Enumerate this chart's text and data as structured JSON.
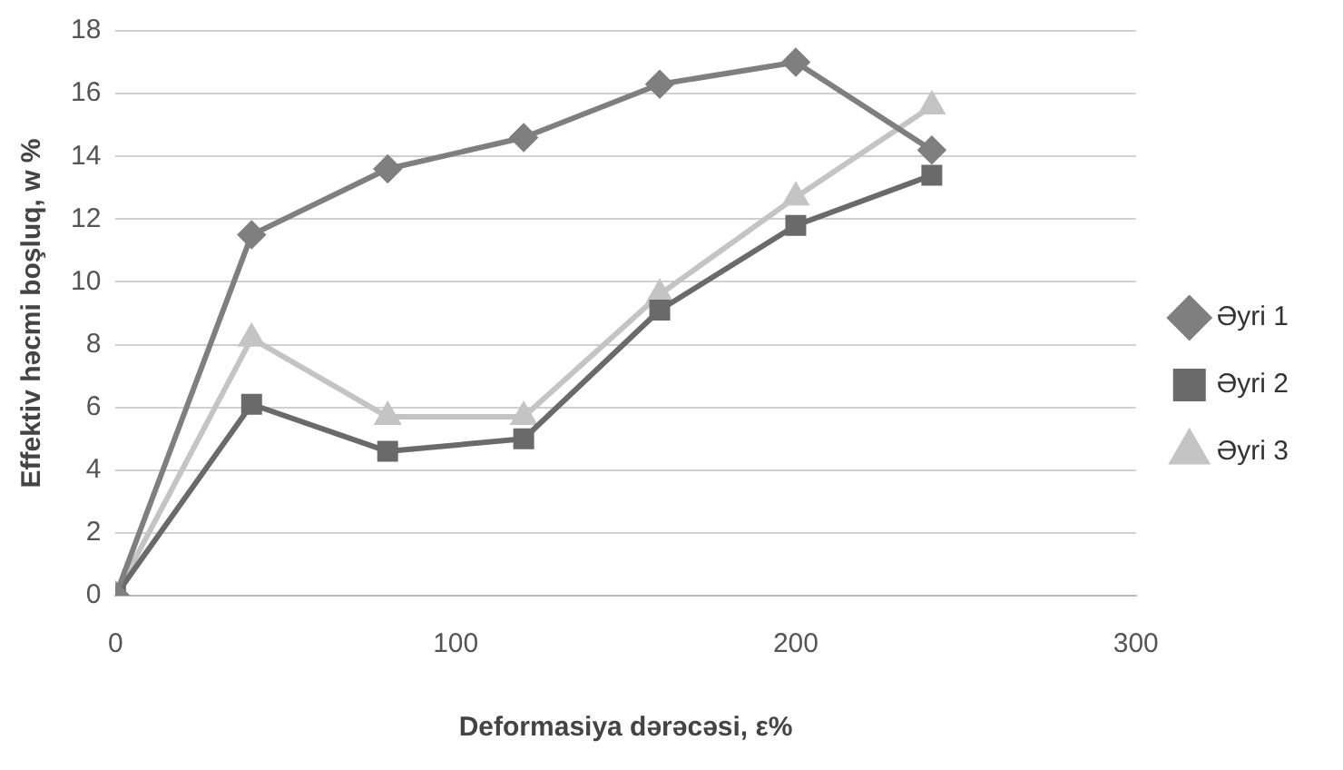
{
  "chart_data": {
    "type": "line",
    "xlabel": "Deformasiya dərəcəsi, ε%",
    "ylabel": "Effektiv həcmi boşluq, w %",
    "x": [
      0,
      40,
      80,
      120,
      160,
      200,
      240
    ],
    "series": [
      {
        "name": "Əyri 1",
        "color": "#7f7f7f",
        "marker": "diamond",
        "values": [
          0,
          11.5,
          13.6,
          14.6,
          16.3,
          17,
          14.2
        ]
      },
      {
        "name": "Əyri 2",
        "color": "#6a6a6a",
        "marker": "square",
        "values": [
          0,
          6.1,
          4.6,
          5.0,
          9.1,
          11.8,
          13.4
        ]
      },
      {
        "name": "Əyri 3",
        "color": "#c4c4c4",
        "marker": "triangle",
        "values": [
          0,
          8.2,
          5.7,
          5.7,
          9.6,
          12.7,
          15.6
        ]
      }
    ],
    "xlim": [
      0,
      300
    ],
    "xticks": [
      0,
      100,
      200,
      300
    ],
    "ylim": [
      0,
      18
    ],
    "yticks": [
      0,
      2,
      4,
      6,
      8,
      10,
      12,
      14,
      16,
      18
    ],
    "grid": "y",
    "legend": "right"
  }
}
